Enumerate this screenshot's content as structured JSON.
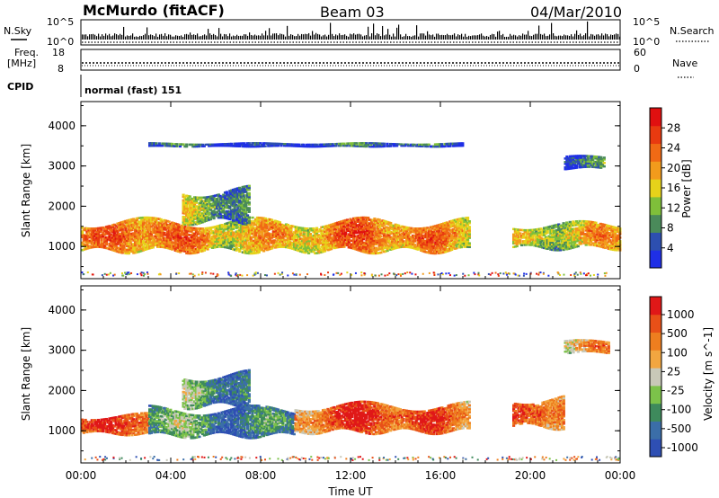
{
  "header": {
    "station": "McMurdo (fitACF)",
    "beam": "Beam 03",
    "date": "04/Mar/2010"
  },
  "top_panels": {
    "nsky_label": "N.Sky",
    "nsky_ticks": [
      "10^5",
      "10^0"
    ],
    "nsearch_label": "N.Search",
    "nsearch_ticks": [
      "10^5",
      "10^0"
    ],
    "freq_label": "Freq.",
    "freq_unit": "[MHz]",
    "freq_ticks": [
      "18",
      "8"
    ],
    "nave_label": "Nave",
    "nave_ticks": [
      "60",
      "0"
    ],
    "cpid_label": "CPID",
    "cpid_value": "normal (fast) 151"
  },
  "colors": {
    "power_scale": [
      "#1f2fe6",
      "#2d4fb0",
      "#4a8a5a",
      "#7fbf3a",
      "#e6d21a",
      "#f29b1c",
      "#f06a15",
      "#e83a10",
      "#e01010"
    ],
    "velocity_scale": [
      "#2e4fb3",
      "#3b6ea8",
      "#3e8a5c",
      "#7cc24a",
      "#c8c8b8",
      "#f2a640",
      "#ee7e1f",
      "#e85018",
      "#e01818"
    ]
  },
  "chart_data": [
    {
      "type": "heatmap",
      "name": "power",
      "ylabel": "Slant Range [km]",
      "yticks": [
        "1000",
        "2000",
        "3000",
        "4000"
      ],
      "ylim": [
        200,
        4600
      ],
      "colorbar_label": "Power [dB]",
      "colorbar_ticks": [
        "4",
        "8",
        "12",
        "16",
        "20",
        "24",
        "28"
      ],
      "colorbar_range": [
        0,
        32
      ],
      "bands": [
        {
          "t_start": 0.0,
          "t_end": 17.3,
          "r_min": 700,
          "r_max": 1800,
          "level": 0.55
        },
        {
          "t_start": 19.2,
          "t_end": 24.0,
          "r_min": 800,
          "r_max": 1700,
          "level": 0.4
        },
        {
          "t_start": 21.5,
          "t_end": 23.3,
          "r_min": 2850,
          "r_max": 3300,
          "level": 0.05
        },
        {
          "t_start": 3.0,
          "t_end": 17.0,
          "r_min": 3450,
          "r_max": 3600,
          "level": 0.05
        },
        {
          "t_start": 4.5,
          "t_end": 7.5,
          "r_min": 1400,
          "r_max": 2600,
          "level": 0.3
        }
      ]
    },
    {
      "type": "heatmap",
      "name": "velocity",
      "ylabel": "Slant Range [km]",
      "yticks": [
        "1000",
        "2000",
        "3000",
        "4000"
      ],
      "ylim": [
        200,
        4600
      ],
      "colorbar_label": "Velocity [m s^-1]",
      "colorbar_ticks": [
        "1000",
        "500",
        "100",
        "25",
        "-25",
        "-100",
        "-500",
        "-1000"
      ],
      "colorbar_range": [
        -1000,
        1000
      ],
      "bands": [
        {
          "t_start": 0.0,
          "t_end": 3.0,
          "r_min": 800,
          "r_max": 1500,
          "level": 0.7
        },
        {
          "t_start": 3.0,
          "t_end": 9.5,
          "r_min": 700,
          "r_max": 1700,
          "level": 0.2
        },
        {
          "t_start": 9.5,
          "t_end": 17.3,
          "r_min": 800,
          "r_max": 1800,
          "level": 0.7
        },
        {
          "t_start": 19.2,
          "t_end": 21.5,
          "r_min": 900,
          "r_max": 2000,
          "level": 0.72
        },
        {
          "t_start": 21.5,
          "t_end": 23.5,
          "r_min": 2850,
          "r_max": 3300,
          "level": 0.48
        },
        {
          "t_start": 4.5,
          "t_end": 7.5,
          "r_min": 1400,
          "r_max": 2600,
          "level": 0.25
        }
      ]
    }
  ],
  "x_axis": {
    "ticks": [
      "00:00",
      "04:00",
      "08:00",
      "12:00",
      "16:00",
      "20:00",
      "00:00"
    ],
    "label": "Time UT"
  }
}
